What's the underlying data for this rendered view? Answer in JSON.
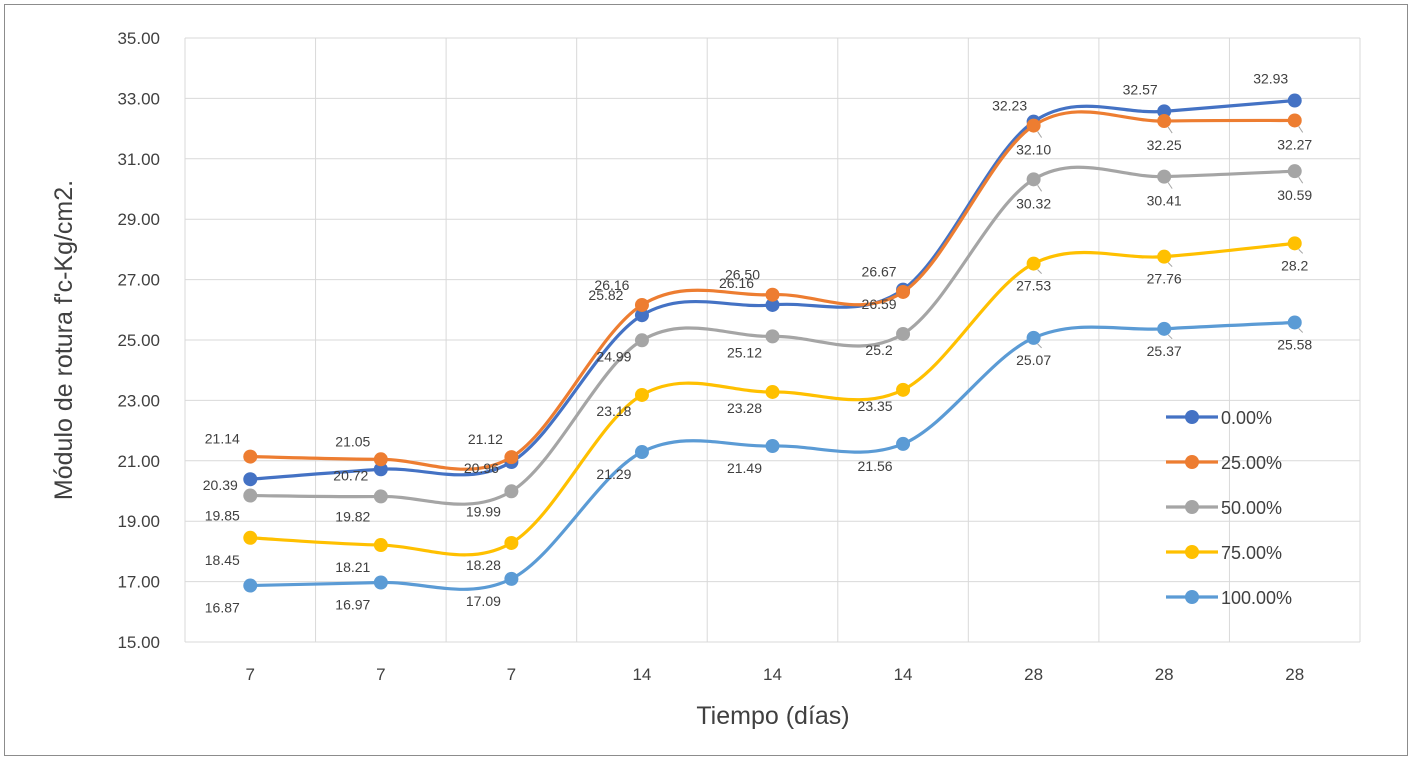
{
  "chart_data": {
    "type": "line",
    "categories": [
      "7",
      "7",
      "7",
      "14",
      "14",
      "14",
      "28",
      "28",
      "28"
    ],
    "xlabel": "Tiempo (días)",
    "ylabel": "Módulo de rotura f'c-Kg/cm2.",
    "ylim": [
      15,
      35
    ],
    "ytick_labels": [
      "15.00",
      "17.00",
      "19.00",
      "21.00",
      "23.00",
      "25.00",
      "27.00",
      "29.00",
      "31.00",
      "33.00",
      "35.00"
    ],
    "grid": true,
    "legend_position": "right",
    "series": [
      {
        "name": "0.00%",
        "color": "#4472c4",
        "values": [
          20.39,
          20.72,
          20.96,
          25.82,
          26.16,
          26.67,
          32.23,
          32.57,
          32.93
        ],
        "labels": [
          "20.39",
          "20.72",
          "20.96",
          "25.82",
          "26.16",
          "26.67",
          "32.23",
          "32.57",
          "32.93"
        ]
      },
      {
        "name": "25.00%",
        "color": "#ed7d31",
        "values": [
          21.14,
          21.05,
          21.12,
          26.16,
          26.5,
          26.59,
          32.1,
          32.25,
          32.27
        ],
        "labels": [
          "21.14",
          "21.05",
          "21.12",
          "26.16",
          "26.50",
          "26.59",
          "32.10",
          "32.25",
          "32.27"
        ]
      },
      {
        "name": "50.00%",
        "color": "#a5a5a5",
        "values": [
          19.85,
          19.82,
          19.99,
          24.99,
          25.12,
          25.2,
          30.32,
          30.41,
          30.59
        ],
        "labels": [
          "19.85",
          "19.82",
          "19.99",
          "24.99",
          "25.12",
          "25.2",
          "30.32",
          "30.41",
          "30.59"
        ]
      },
      {
        "name": "75.00%",
        "color": "#ffc000",
        "values": [
          18.45,
          18.21,
          18.28,
          23.18,
          23.28,
          23.35,
          27.53,
          27.76,
          28.2
        ],
        "labels": [
          "18.45",
          "18.21",
          "18.28",
          "23.18",
          "23.28",
          "23.35",
          "27.53",
          "27.76",
          "28.2"
        ]
      },
      {
        "name": "100.00%",
        "color": "#5b9bd5",
        "values": [
          16.87,
          16.97,
          17.09,
          21.29,
          21.49,
          21.56,
          25.07,
          25.37,
          25.58
        ],
        "labels": [
          "16.87",
          "16.97",
          "17.09",
          "21.29",
          "21.49",
          "21.56",
          "25.07",
          "25.37",
          "25.58"
        ]
      }
    ]
  }
}
